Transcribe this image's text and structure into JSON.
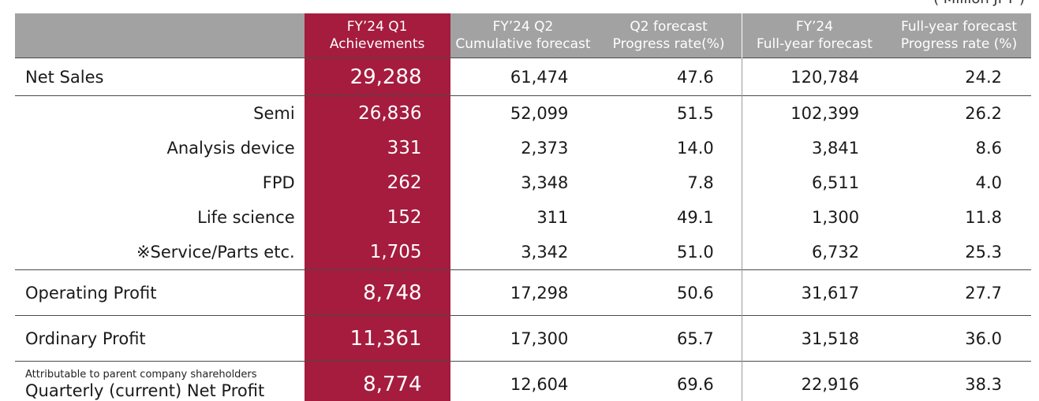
{
  "unit": "( Million JPY )",
  "headers": {
    "q1": {
      "line1": "FY’24 Q1",
      "line2": "Achievements"
    },
    "q2": {
      "line1": "FY’24 Q2",
      "line2": "Cumulative forecast"
    },
    "q2rate": {
      "line1": "Q2 forecast",
      "line2": "Progress rate(%)"
    },
    "fy": {
      "line1": "FY’24",
      "line2": "Full-year forecast"
    },
    "fyrate": {
      "line1": "Full-year forecast",
      "line2": "Progress rate (%)"
    }
  },
  "rows": {
    "net_sales": {
      "label": "Net Sales",
      "q1": "29,288",
      "q2": "61,474",
      "q2rate": "47.6",
      "fy": "120,784",
      "fyrate": "24.2"
    },
    "semi": {
      "label": "Semi",
      "q1": "26,836",
      "q2": "52,099",
      "q2rate": "51.5",
      "fy": "102,399",
      "fyrate": "26.2"
    },
    "analysis": {
      "label": "Analysis device",
      "q1": "331",
      "q2": "2,373",
      "q2rate": "14.0",
      "fy": "3,841",
      "fyrate": "8.6"
    },
    "fpd": {
      "label": "FPD",
      "q1": "262",
      "q2": "3,348",
      "q2rate": "7.8",
      "fy": "6,511",
      "fyrate": "4.0"
    },
    "life": {
      "label": "Life science",
      "q1": "152",
      "q2": "311",
      "q2rate": "49.1",
      "fy": "1,300",
      "fyrate": "11.8"
    },
    "service": {
      "label": "※Service/Parts etc.",
      "q1": "1,705",
      "q2": "3,342",
      "q2rate": "51.0",
      "fy": "6,732",
      "fyrate": "25.3"
    },
    "operating": {
      "label": "Operating Profit",
      "q1": "8,748",
      "q2": "17,298",
      "q2rate": "50.6",
      "fy": "31,617",
      "fyrate": "27.7"
    },
    "ordinary": {
      "label": "Ordinary Profit",
      "q1": "11,361",
      "q2": "17,300",
      "q2rate": "65.7",
      "fy": "31,518",
      "fyrate": "36.0"
    },
    "net_profit": {
      "label_small": "Attributable to parent company shareholders",
      "label": "Quarterly (current) Net Profit",
      "q1": "8,774",
      "q2": "12,604",
      "q2rate": "69.6",
      "fy": "22,916",
      "fyrate": "38.3"
    }
  },
  "colors": {
    "accent": "#a51c3e",
    "header_gray": "#a2a2a2"
  }
}
